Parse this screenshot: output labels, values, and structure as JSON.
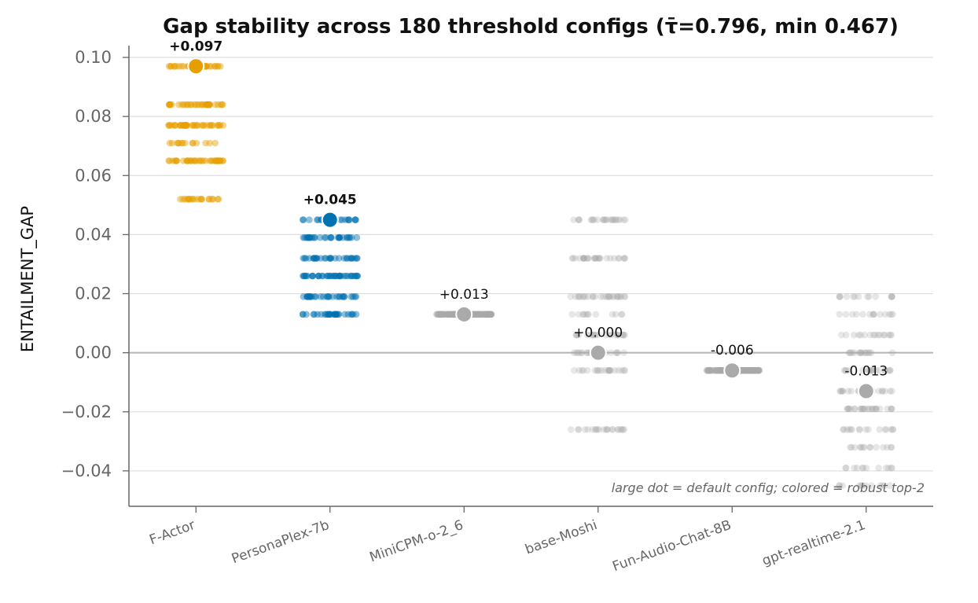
{
  "chart_data": {
    "type": "scatter",
    "title": "Gap stability across 180 threshold configs (τ̄=0.796, min 0.467)",
    "xlabel": "",
    "ylabel": "ENTAILMENT_GAP",
    "ylim": [
      -0.052,
      0.104
    ],
    "yticks": [
      -0.04,
      -0.02,
      0.0,
      0.02,
      0.04,
      0.06,
      0.08,
      0.1
    ],
    "ytick_labels": [
      "−0.04",
      "−0.02",
      "0.00",
      "0.02",
      "0.04",
      "0.06",
      "0.08",
      "0.10"
    ],
    "grid": "horizontal",
    "zero_line": true,
    "annotation": "large dot = default config;  colored = robust top-2",
    "categories": [
      "F-Actor",
      "PersonaPlex-7b",
      "MiniCPM-o-2_6",
      "base-Moshi",
      "Fun-Audio-Chat-8B",
      "gpt-realtime-2.1"
    ],
    "series": [
      {
        "category": "F-Actor",
        "default_value": 0.097,
        "label": "+0.097",
        "highlighted": true,
        "color": "#E69F00",
        "config_levels": [
          0.097,
          0.084,
          0.077,
          0.071,
          0.065,
          0.052
        ],
        "level_counts": [
          30,
          36,
          40,
          14,
          40,
          20
        ]
      },
      {
        "category": "PersonaPlex-7b",
        "default_value": 0.045,
        "label": "+0.045",
        "highlighted": true,
        "color": "#0072B2",
        "config_levels": [
          0.045,
          0.039,
          0.032,
          0.026,
          0.019,
          0.013
        ],
        "level_counts": [
          20,
          30,
          30,
          40,
          30,
          30
        ]
      },
      {
        "category": "MiniCPM-o-2_6",
        "default_value": 0.013,
        "label": "+0.013",
        "highlighted": false,
        "color": "#aaaaaa",
        "config_levels": [
          0.013
        ],
        "level_counts": [
          180
        ]
      },
      {
        "category": "base-Moshi",
        "default_value": 0.0,
        "label": "+0.000",
        "highlighted": false,
        "color": "#aaaaaa",
        "config_levels": [
          0.045,
          0.032,
          0.019,
          0.013,
          0.006,
          0.0,
          -0.006,
          -0.026
        ],
        "level_counts": [
          24,
          28,
          28,
          12,
          22,
          22,
          22,
          22
        ]
      },
      {
        "category": "Fun-Audio-Chat-8B",
        "default_value": -0.006,
        "label": "-0.006",
        "highlighted": false,
        "color": "#aaaaaa",
        "config_levels": [
          -0.006
        ],
        "level_counts": [
          180
        ]
      },
      {
        "category": "gpt-realtime-2.1",
        "default_value": -0.013,
        "label": "-0.013",
        "highlighted": false,
        "color": "#aaaaaa",
        "config_levels": [
          0.019,
          0.013,
          0.006,
          0.0,
          -0.006,
          -0.013,
          -0.019,
          -0.026,
          -0.032,
          -0.039,
          -0.045
        ],
        "level_counts": [
          14,
          14,
          16,
          16,
          18,
          22,
          26,
          16,
          14,
          12,
          12
        ]
      }
    ]
  }
}
